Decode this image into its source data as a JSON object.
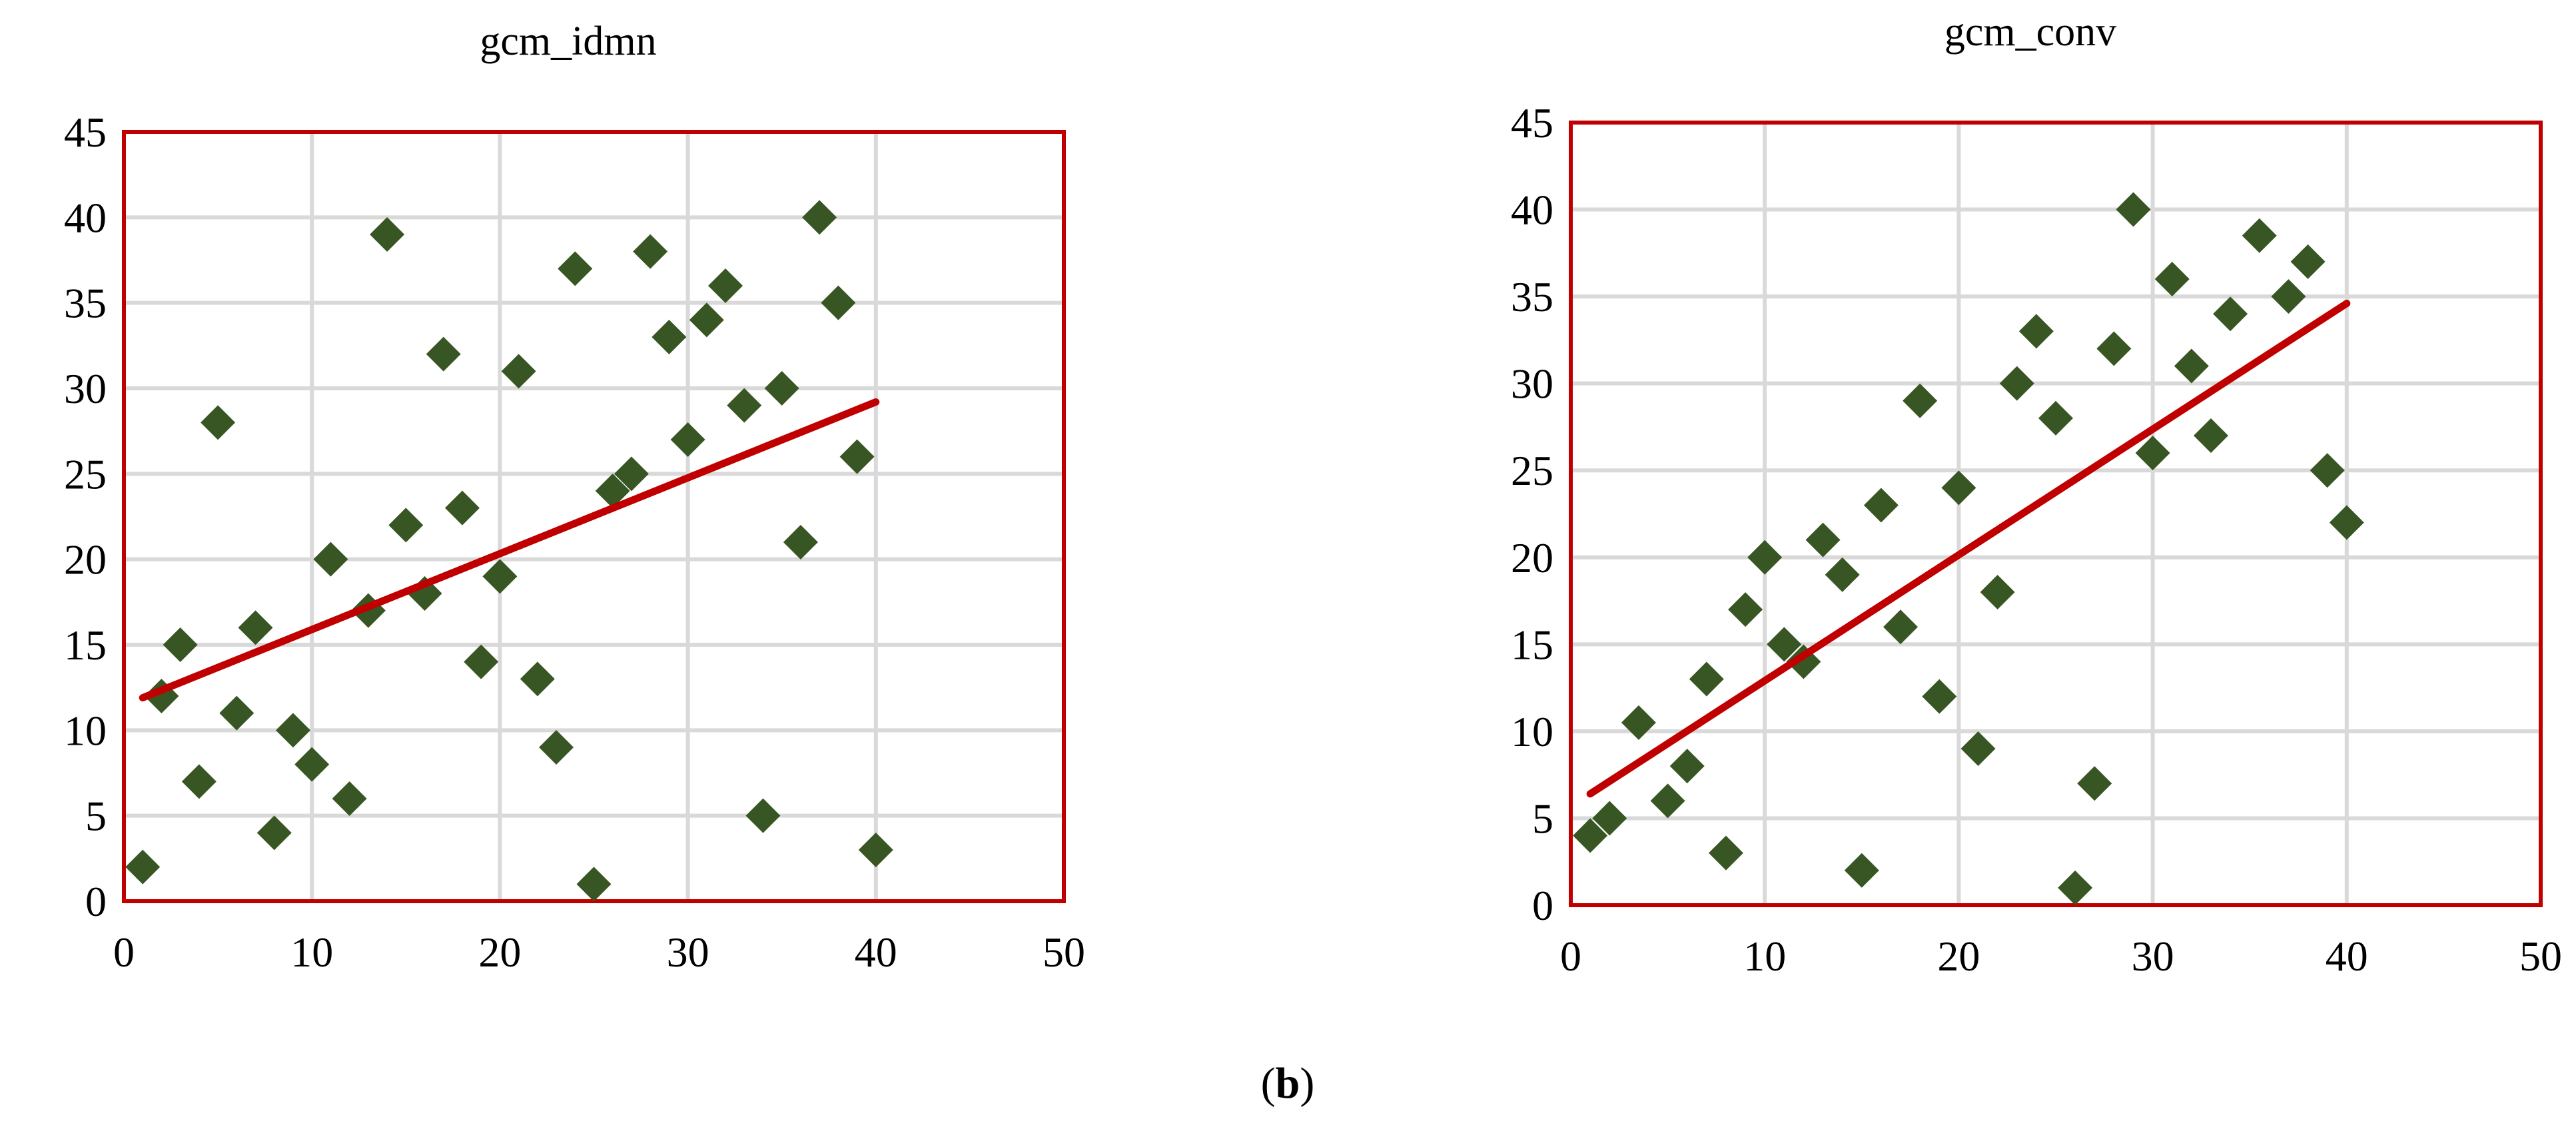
{
  "figure_caption": {
    "open": "(",
    "letter": "b",
    "close": ")"
  },
  "chart_data": [
    {
      "type": "scatter",
      "title": "gcm_idmn",
      "xlim": [
        0,
        50
      ],
      "ylim": [
        0,
        45
      ],
      "x_ticks": [
        0,
        10,
        20,
        30,
        40,
        50
      ],
      "y_ticks": [
        0,
        5,
        10,
        15,
        20,
        25,
        30,
        35,
        40,
        45
      ],
      "grid": true,
      "legend": "none",
      "colors": {
        "points": "#375623",
        "trendline": "#c00000",
        "frame": "#c00000",
        "grid": "#d9d9d9"
      },
      "points": [
        [
          1,
          2
        ],
        [
          2,
          12
        ],
        [
          3,
          15
        ],
        [
          4,
          7
        ],
        [
          5,
          28
        ],
        [
          6,
          11
        ],
        [
          7,
          16
        ],
        [
          8,
          4
        ],
        [
          9,
          10
        ],
        [
          10,
          8
        ],
        [
          11,
          20
        ],
        [
          12,
          6
        ],
        [
          13,
          17
        ],
        [
          14,
          39
        ],
        [
          15,
          22
        ],
        [
          16,
          18
        ],
        [
          17,
          32
        ],
        [
          18,
          23
        ],
        [
          19,
          14
        ],
        [
          20,
          19
        ],
        [
          21,
          31
        ],
        [
          22,
          13
        ],
        [
          23,
          9
        ],
        [
          24,
          37
        ],
        [
          25,
          1
        ],
        [
          26,
          24
        ],
        [
          27,
          25
        ],
        [
          28,
          38
        ],
        [
          29,
          33
        ],
        [
          30,
          27
        ],
        [
          31,
          34
        ],
        [
          32,
          36
        ],
        [
          33,
          29
        ],
        [
          34,
          5
        ],
        [
          35,
          30
        ],
        [
          36,
          21
        ],
        [
          37,
          40
        ],
        [
          38,
          35
        ],
        [
          39,
          26
        ],
        [
          40,
          3
        ]
      ],
      "trendline": {
        "x": [
          1,
          40
        ],
        "y": [
          11.9,
          29.2
        ]
      }
    },
    {
      "type": "scatter",
      "title": "gcm_conv",
      "xlim": [
        0,
        50
      ],
      "ylim": [
        0,
        45
      ],
      "x_ticks": [
        0,
        10,
        20,
        30,
        40,
        50
      ],
      "y_ticks": [
        0,
        5,
        10,
        15,
        20,
        25,
        30,
        35,
        40,
        45
      ],
      "grid": true,
      "legend": "none",
      "colors": {
        "points": "#375623",
        "trendline": "#c00000",
        "frame": "#c00000",
        "grid": "#d9d9d9"
      },
      "points": [
        [
          1,
          4
        ],
        [
          2,
          5
        ],
        [
          3.5,
          10.5
        ],
        [
          5,
          6
        ],
        [
          6,
          8
        ],
        [
          7,
          13
        ],
        [
          8,
          3
        ],
        [
          9,
          17
        ],
        [
          10,
          20
        ],
        [
          11,
          15
        ],
        [
          12,
          14
        ],
        [
          13,
          21
        ],
        [
          14,
          19
        ],
        [
          15,
          2
        ],
        [
          16,
          23
        ],
        [
          17,
          16
        ],
        [
          18,
          29
        ],
        [
          19,
          12
        ],
        [
          20,
          24
        ],
        [
          21,
          9
        ],
        [
          22,
          18
        ],
        [
          23,
          30
        ],
        [
          24,
          33
        ],
        [
          25,
          28
        ],
        [
          26,
          1
        ],
        [
          27,
          7
        ],
        [
          28,
          32
        ],
        [
          29,
          40
        ],
        [
          30,
          26
        ],
        [
          31,
          36
        ],
        [
          32,
          31
        ],
        [
          33,
          27
        ],
        [
          34,
          34
        ],
        [
          35.5,
          38.5
        ],
        [
          37,
          35
        ],
        [
          38,
          37
        ],
        [
          39,
          25
        ],
        [
          40,
          22
        ]
      ],
      "trendline": {
        "x": [
          1,
          40
        ],
        "y": [
          6.4,
          34.6
        ]
      }
    }
  ]
}
